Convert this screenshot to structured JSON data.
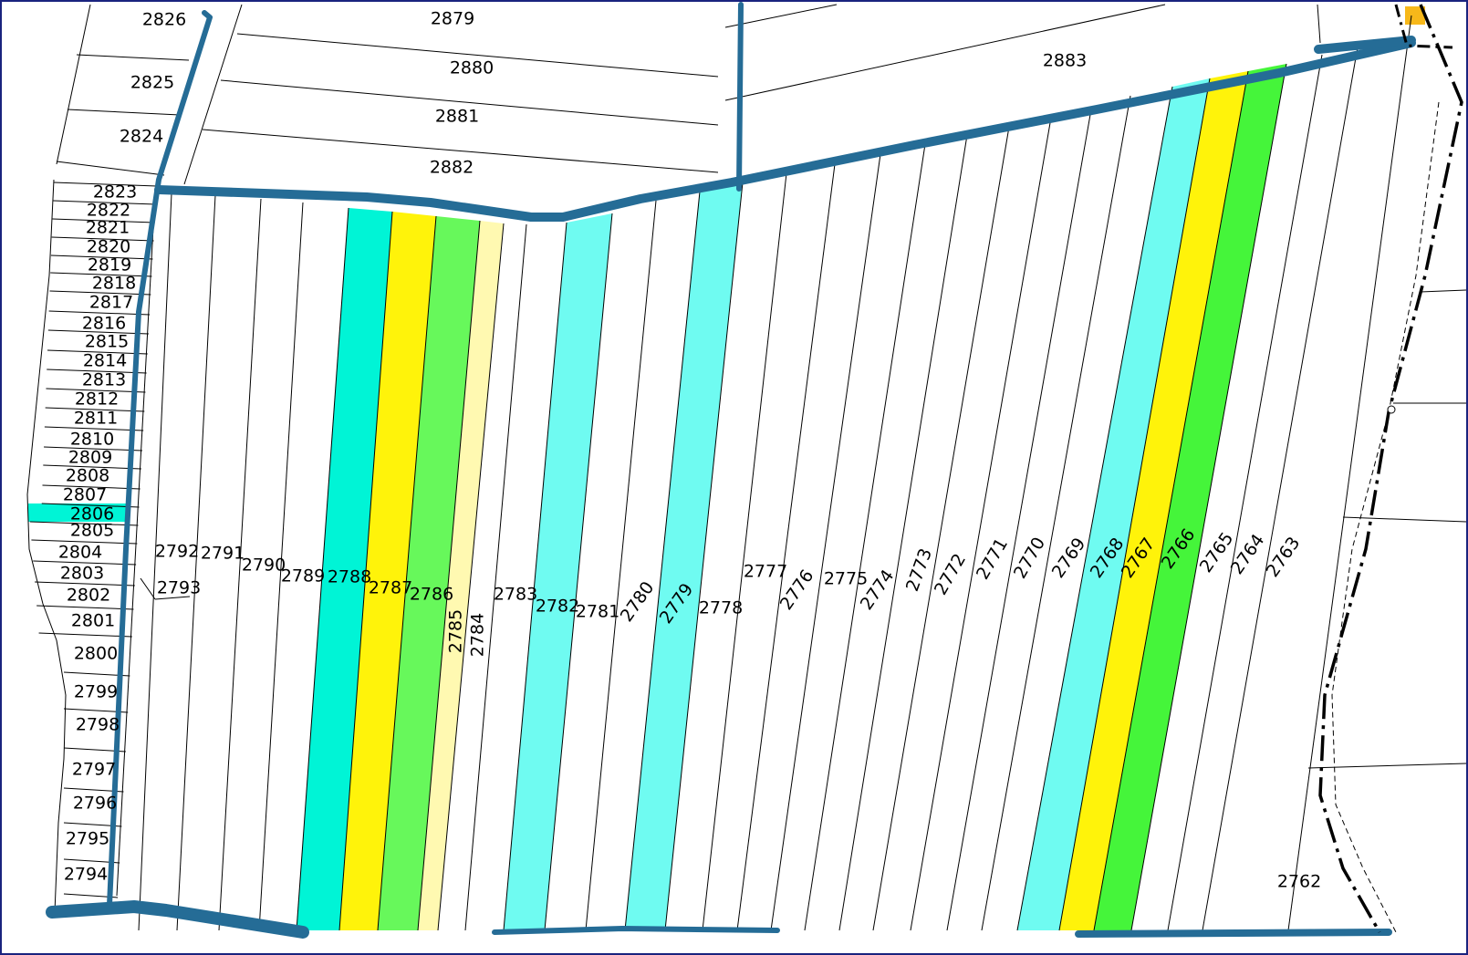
{
  "map": {
    "colors": {
      "road": "#256c96",
      "cyan_light": "#6ffbf1",
      "turquoise": "#00f4d6",
      "yellow": "#fff30a",
      "green": "#67f85b",
      "bright_green": "#45f53a",
      "pale_yellow": "#fff9b1",
      "orange_marker": "#f7b81a",
      "boundary": "#000000"
    },
    "top_parcels": [
      "2879",
      "2880",
      "2881",
      "2882",
      "2883"
    ],
    "left_top_parcels": [
      "2826",
      "2825",
      "2824"
    ],
    "left_column_parcels": [
      "2823",
      "2822",
      "2821",
      "2820",
      "2819",
      "2818",
      "2817",
      "2816",
      "2815",
      "2814",
      "2813",
      "2812",
      "2811",
      "2810",
      "2809",
      "2808",
      "2807",
      "2806",
      "2805",
      "2804",
      "2803",
      "2802",
      "2801",
      "2800",
      "2799",
      "2798",
      "2797",
      "2796",
      "2795",
      "2794"
    ],
    "highlighted_left_parcel": "2806",
    "strip_parcels": [
      "2793",
      "2792",
      "2791",
      "2790",
      "2789",
      "2788",
      "2787",
      "2786",
      "2785",
      "2784",
      "2783",
      "2782",
      "2781",
      "2780",
      "2779",
      "2778",
      "2777",
      "2776",
      "2775",
      "2774",
      "2773",
      "2772",
      "2771",
      "2770",
      "2769",
      "2768",
      "2767",
      "2766",
      "2765",
      "2764",
      "2763",
      "2762"
    ],
    "colored_strips": [
      {
        "parcel": "2788",
        "color": "turquoise"
      },
      {
        "parcel": "2787",
        "color": "yellow"
      },
      {
        "parcel": "2786",
        "color": "green"
      },
      {
        "parcel": "2785",
        "color": "pale_yellow"
      },
      {
        "parcel": "2782",
        "color": "cyan_light"
      },
      {
        "parcel": "2779",
        "color": "cyan_light"
      },
      {
        "parcel": "2768",
        "color": "cyan_light"
      },
      {
        "parcel": "2767",
        "color": "yellow"
      },
      {
        "parcel": "2766",
        "color": "bright_green"
      }
    ]
  }
}
